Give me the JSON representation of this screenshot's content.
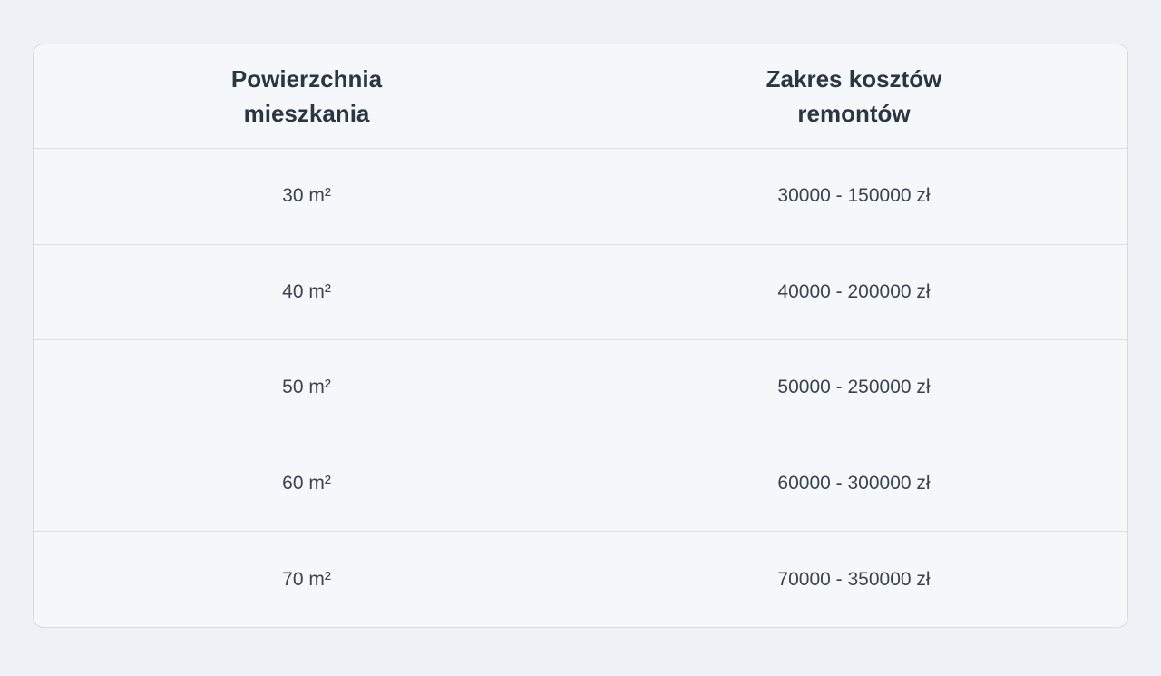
{
  "table": {
    "columns": [
      "Powierzchnia\nmieszkania",
      "Zakres kosztów\nremontów"
    ],
    "rows": [
      [
        "30 m²",
        "30000 - 150000 zł"
      ],
      [
        "40 m²",
        "40000 - 200000 zł"
      ],
      [
        "50 m²",
        "50000 - 250000 zł"
      ],
      [
        "60 m²",
        "60000 - 300000 zł"
      ],
      [
        "70 m²",
        "70000 - 350000 zł"
      ]
    ]
  },
  "chart_data": {
    "type": "table",
    "title": "",
    "columns": [
      "Powierzchnia mieszkania",
      "Zakres kosztów remontów"
    ],
    "rows": [
      [
        "30 m²",
        "30000 - 150000 zł"
      ],
      [
        "40 m²",
        "40000 - 200000 zł"
      ],
      [
        "50 m²",
        "50000 - 250000 zł"
      ],
      [
        "60 m²",
        "60000 - 300000 zł"
      ],
      [
        "70 m²",
        "70000 - 350000 zł"
      ]
    ],
    "area_m2": [
      30,
      40,
      50,
      60,
      70
    ],
    "cost_min_zl": [
      30000,
      40000,
      50000,
      60000,
      70000
    ],
    "cost_max_zl": [
      150000,
      200000,
      250000,
      300000,
      350000
    ]
  },
  "colors": {
    "page_background": "#eef2f7",
    "card_background": "#f5f8fb",
    "border": "#d6dae1",
    "grid_line": "#dbdfe5",
    "header_text": "#2c3542",
    "cell_text": "#3b4350"
  }
}
